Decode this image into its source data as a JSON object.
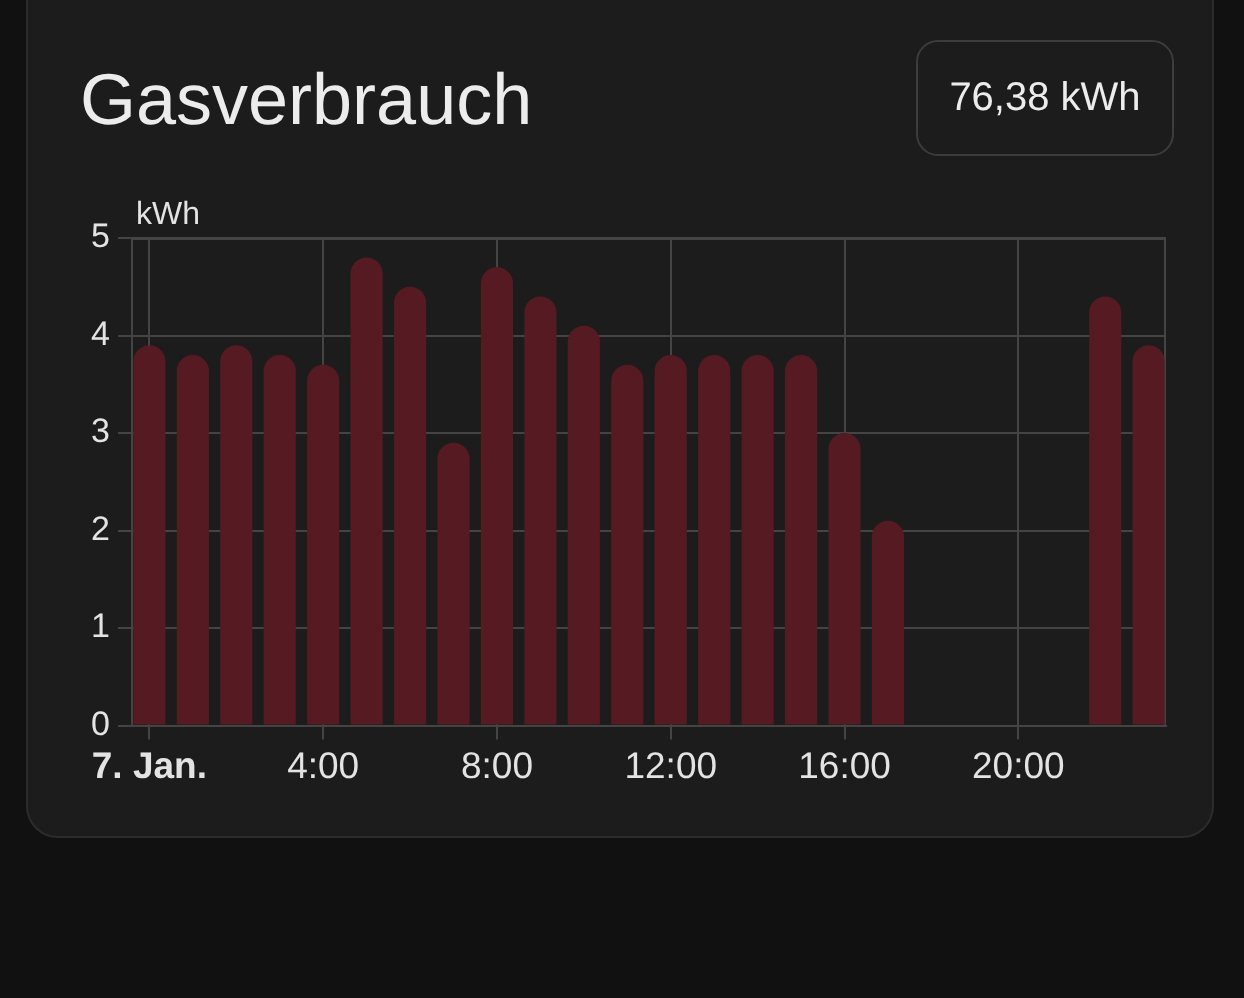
{
  "chart_data": {
    "type": "bar",
    "title": "Gasverbrauch",
    "annotations": [
      "76,38 kWh"
    ],
    "ylabel": "kWh",
    "x": [
      0,
      1,
      2,
      3,
      4,
      5,
      6,
      7,
      8,
      9,
      10,
      11,
      12,
      13,
      14,
      15,
      16,
      17,
      18,
      19,
      20,
      21,
      22,
      23
    ],
    "values": [
      3.9,
      3.8,
      3.9,
      3.8,
      3.7,
      4.8,
      4.5,
      2.9,
      4.7,
      4.4,
      4.1,
      3.7,
      3.8,
      3.8,
      3.8,
      3.8,
      3.0,
      2.1,
      null,
      null,
      null,
      null,
      4.4,
      3.9
    ],
    "color": "#561a22",
    "xlim": [
      -0.4,
      23.4
    ],
    "xticks": [
      {
        "value": 0,
        "label": "7. Jan."
      },
      {
        "value": 4,
        "label": "4:00"
      },
      {
        "value": 8,
        "label": "8:00"
      },
      {
        "value": 12,
        "label": "12:00"
      },
      {
        "value": 16,
        "label": "16:00"
      },
      {
        "value": 20,
        "label": "20:00"
      }
    ],
    "ylim": [
      0,
      5
    ],
    "yticks": [
      0,
      1,
      2,
      3,
      4,
      5
    ],
    "grid": true,
    "legend": false
  }
}
